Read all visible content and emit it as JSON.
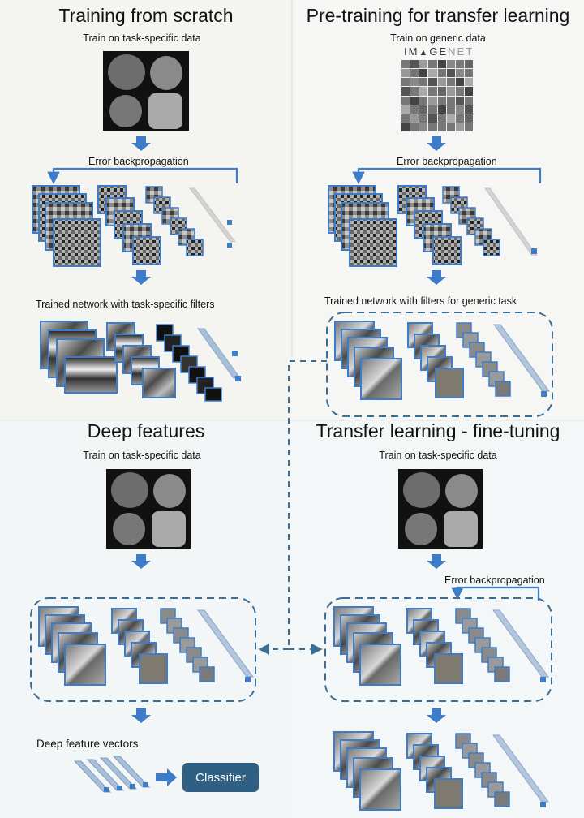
{
  "panels": {
    "training_scratch": {
      "title": "Training from scratch",
      "caption_top": "Train on task-specific data",
      "backprop_label": "Error backpropagation",
      "result_label": "Trained network with task-specific filters"
    },
    "pretraining": {
      "title": "Pre-training for transfer learning",
      "caption_top": "Train on generic data",
      "logo_text_dark": "IM",
      "logo_text_mid": "GE",
      "logo_text_light": "NET",
      "backprop_label": "Error backpropagation",
      "result_label": "Trained network with filters for generic task"
    },
    "deep_features": {
      "title": "Deep features",
      "caption_top": "Train on task-specific data",
      "vectors_label": "Deep feature vectors",
      "classifier_label": "Classifier"
    },
    "fine_tuning": {
      "title": "Transfer learning - fine-tuning",
      "caption_top": "Train on task-specific data",
      "backprop_label": "Error backpropagation"
    }
  },
  "colors": {
    "accent_blue": "#3d7cc9",
    "dashed_blue": "#3b6e94",
    "classifier_bg": "#2f5f82"
  }
}
